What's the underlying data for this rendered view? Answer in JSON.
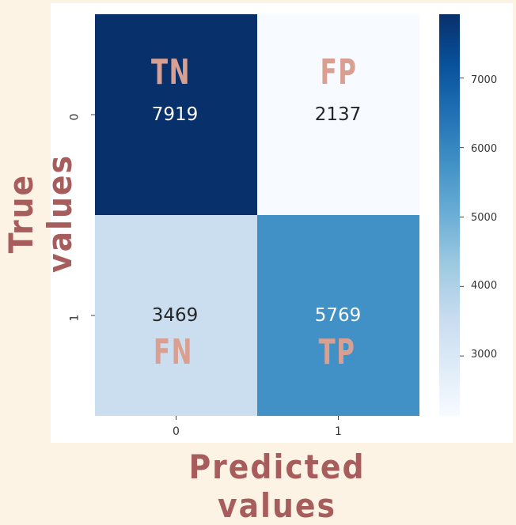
{
  "chart_data": {
    "type": "heatmap",
    "title": "",
    "xlabel": "Predicted values",
    "ylabel": "True values",
    "x_categories": [
      "0",
      "1"
    ],
    "y_categories": [
      "0",
      "1"
    ],
    "values": [
      [
        7919,
        2137
      ],
      [
        3469,
        5769
      ]
    ],
    "quadrant_labels": [
      [
        "TN",
        "FP"
      ],
      [
        "FN",
        "TP"
      ]
    ],
    "colormap": "Blues",
    "colorbar": {
      "range": [
        2137,
        7919
      ],
      "ticks": [
        3000,
        4000,
        5000,
        6000,
        7000
      ],
      "tick_labels": [
        "3000",
        "4000",
        "5000",
        "6000",
        "7000"
      ]
    },
    "colors": {
      "label_color": "#d9a091",
      "axis_title_color": "#a85d5d",
      "background": "#fdf3e4"
    }
  }
}
